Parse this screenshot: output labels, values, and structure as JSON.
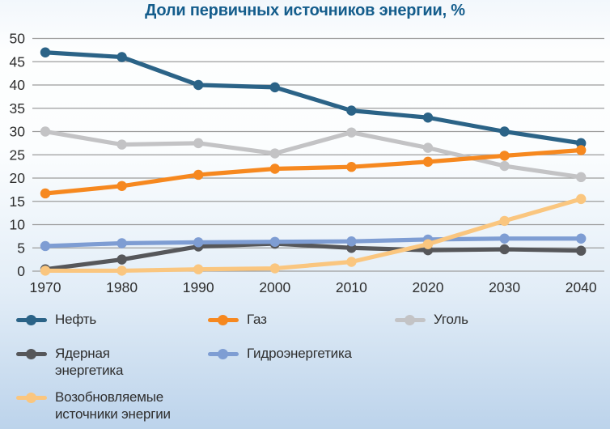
{
  "title": "Доли первичных источников энергии, %",
  "colors": {
    "title": "#145D8C",
    "gridline": "#9D9D9D",
    "axis_text": "#2D2D2D",
    "legend_text": "#2E2E2E",
    "background_top": "#FBFDFE",
    "background_bottom": "#BCD3EB"
  },
  "chart_data": {
    "type": "line",
    "title": "Доли первичных источников энергии, %",
    "xlabel": "",
    "ylabel": "",
    "x": [
      1970,
      1980,
      1990,
      2000,
      2010,
      2020,
      2030,
      2040
    ],
    "series": [
      {
        "name": "Нефть",
        "color": "#2B6387",
        "values": [
          47,
          46,
          40,
          39.5,
          34.5,
          33,
          30,
          27.5
        ]
      },
      {
        "name": "Газ",
        "color": "#F6881F",
        "values": [
          16.7,
          18.3,
          20.7,
          22,
          22.4,
          23.5,
          24.8,
          26
        ]
      },
      {
        "name": "Уголь",
        "color": "#C3C3C5",
        "values": [
          30,
          27.2,
          27.5,
          25.3,
          29.8,
          26.5,
          22.6,
          20.2
        ]
      },
      {
        "name": "Ядерная энергетика",
        "color": "#56575A",
        "values": [
          0.4,
          2.5,
          5.3,
          5.9,
          5,
          4.5,
          4.7,
          4.4
        ]
      },
      {
        "name": "Гидроэнергетика",
        "color": "#7E9DD3",
        "values": [
          5.4,
          6,
          6.2,
          6.3,
          6.4,
          6.8,
          7,
          7
        ]
      },
      {
        "name": "Возобновляемые источники энергии",
        "color": "#FAC67F",
        "values": [
          0.1,
          0.1,
          0.4,
          0.6,
          2,
          5.8,
          10.8,
          15.5
        ]
      }
    ],
    "ylim": [
      0,
      50
    ],
    "yticks": [
      50,
      45,
      40,
      35,
      30,
      25,
      20,
      15,
      10,
      5,
      0
    ],
    "grid": true,
    "legend_position": "bottom"
  },
  "legend": {
    "items": [
      {
        "label": "Нефть",
        "color": "#2B6387"
      },
      {
        "label": "Газ",
        "color": "#F6881F"
      },
      {
        "label": "Уголь",
        "color": "#C3C3C5"
      },
      {
        "label": "Ядерная\nэнергетика",
        "color": "#56575A"
      },
      {
        "label": "Гидроэнергетика",
        "color": "#7E9DD3"
      },
      {
        "label": "Возобновляемые\nисточники энергии",
        "color": "#FAC67F"
      }
    ]
  }
}
